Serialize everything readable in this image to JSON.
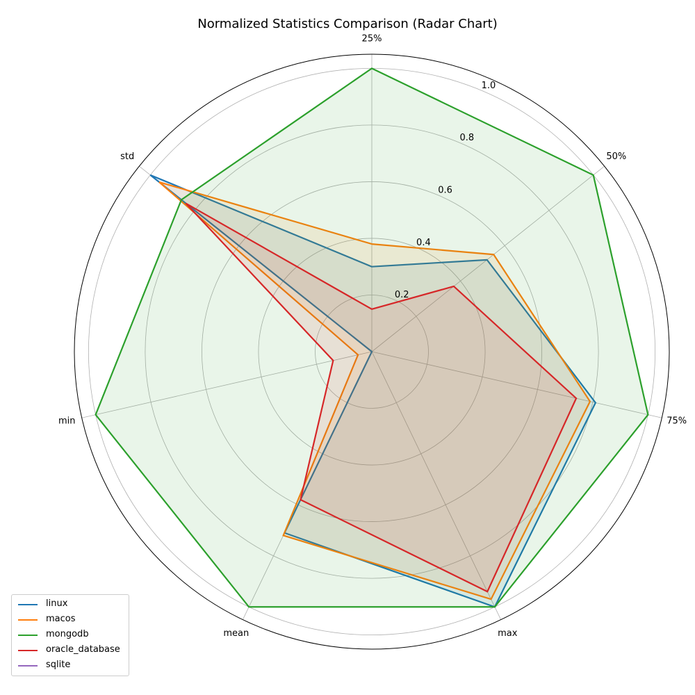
{
  "chart_data": {
    "type": "radar",
    "title": "Normalized Statistics Comparison (Radar Chart)",
    "axes": [
      "25%",
      "50%",
      "75%",
      "max",
      "mean",
      "min",
      "std"
    ],
    "rlim": [
      0,
      1.05
    ],
    "r_ticks": [
      0.2,
      0.4,
      0.6,
      0.8,
      1.0
    ],
    "r_tick_labels": [
      "0.2",
      "0.4",
      "0.6",
      "0.8",
      "1.0"
    ],
    "grid": true,
    "legend_position": "bottom-left",
    "series": [
      {
        "name": "linux",
        "color": "#1f77b4",
        "values": [
          0.3,
          0.52,
          0.81,
          1.0,
          0.71,
          0.0,
          1.0
        ]
      },
      {
        "name": "macos",
        "color": "#ff7f0e",
        "values": [
          0.38,
          0.55,
          0.79,
          0.97,
          0.72,
          0.05,
          0.96
        ]
      },
      {
        "name": "mongodb",
        "color": "#2ca02c",
        "values": [
          1.0,
          1.0,
          1.0,
          1.0,
          1.0,
          1.0,
          0.86
        ]
      },
      {
        "name": "oracle_database",
        "color": "#d62728",
        "values": [
          0.15,
          0.37,
          0.74,
          0.94,
          0.58,
          0.14,
          0.84
        ]
      },
      {
        "name": "sqlite",
        "color": "#9467bd",
        "values": [
          0.0,
          0.0,
          0.0,
          0.0,
          0.0,
          0.0,
          0.0
        ]
      }
    ]
  }
}
